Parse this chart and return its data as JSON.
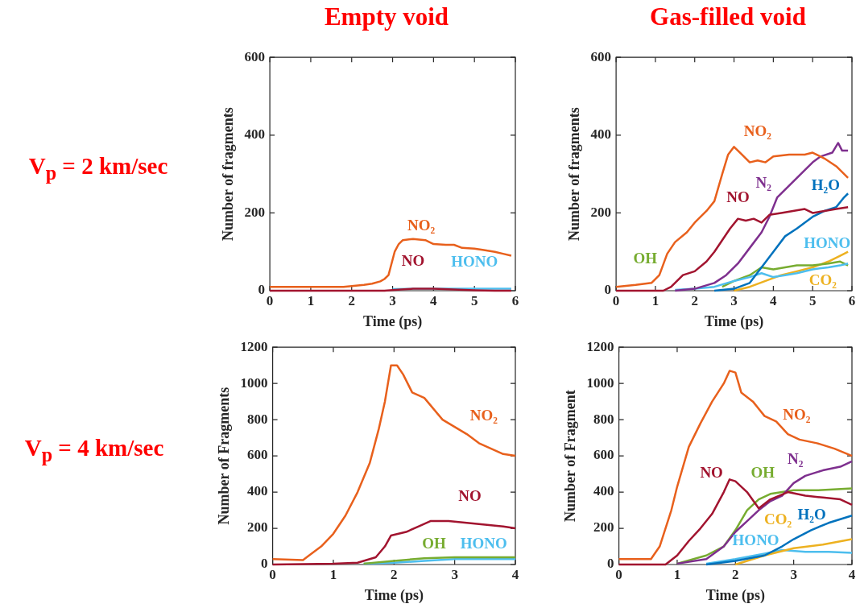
{
  "chart_data": [
    {
      "type": "line",
      "title": "Empty void",
      "annotations": [
        "V$_{p}$ = 2 km/sec"
      ],
      "xlabel": "Time (ps)",
      "ylabel": "Number of fragments",
      "xlim": [
        0,
        6
      ],
      "xticks": [
        0,
        1,
        2,
        3,
        4,
        5,
        6
      ],
      "ylim": [
        0,
        600
      ],
      "yticks": [
        0,
        200,
        400,
        600
      ],
      "series": [
        {
          "name": "NO₂",
          "color": "#e8601c",
          "x": [
            0,
            0.5,
            1,
            1.5,
            1.8,
            2.1,
            2.3,
            2.5,
            2.7,
            2.8,
            2.9,
            2.95,
            3.05,
            3.15,
            3.25,
            3.4,
            3.5,
            3.8,
            4.0,
            4.3,
            4.5,
            4.7,
            5.0,
            5.2,
            5.5,
            5.7,
            5.9
          ],
          "values": [
            10,
            10,
            10,
            10,
            10,
            13,
            15,
            18,
            24,
            30,
            40,
            60,
            100,
            120,
            130,
            132,
            133,
            130,
            120,
            118,
            118,
            110,
            108,
            105,
            100,
            95,
            90
          ]
        },
        {
          "name": "NO",
          "color": "#a2142f",
          "x": [
            0,
            1,
            2,
            2.8,
            3.2,
            3.5,
            4.0,
            4.5,
            5.0,
            5.5,
            5.9
          ],
          "values": [
            0,
            0,
            0,
            0,
            3,
            5,
            5,
            3,
            1,
            0,
            0
          ]
        },
        {
          "name": "HONO",
          "color": "#4dbeee",
          "x": [
            3.0,
            3.5,
            4.0,
            4.5,
            5.0,
            5.5,
            5.9
          ],
          "values": [
            4,
            5,
            5,
            5,
            5,
            5,
            5
          ]
        }
      ]
    },
    {
      "type": "line",
      "title": "Gas-filled void",
      "xlabel": "Time (ps)",
      "ylabel": "Number of fragments",
      "xlim": [
        0,
        6
      ],
      "xticks": [
        0,
        1,
        2,
        3,
        4,
        5,
        6
      ],
      "ylim": [
        0,
        600
      ],
      "yticks": [
        0,
        200,
        400,
        600
      ],
      "series": [
        {
          "name": "NO₂",
          "color": "#e8601c",
          "x": [
            0,
            0.5,
            0.9,
            1.1,
            1.3,
            1.5,
            1.8,
            2.0,
            2.3,
            2.5,
            2.7,
            2.85,
            3.0,
            3.2,
            3.4,
            3.6,
            3.8,
            4.0,
            4.4,
            4.8,
            5.0,
            5.3,
            5.6,
            5.9
          ],
          "values": [
            10,
            15,
            20,
            40,
            95,
            125,
            150,
            175,
            205,
            230,
            300,
            350,
            370,
            350,
            330,
            335,
            330,
            345,
            350,
            350,
            355,
            340,
            320,
            290
          ]
        },
        {
          "name": "NO",
          "color": "#a2142f",
          "x": [
            0,
            1.2,
            1.4,
            1.7,
            2.0,
            2.3,
            2.5,
            2.7,
            2.9,
            3.1,
            3.3,
            3.5,
            3.7,
            3.9,
            4.2,
            4.5,
            4.8,
            5.0,
            5.3,
            5.6,
            5.9
          ],
          "values": [
            0,
            0,
            10,
            40,
            50,
            75,
            100,
            130,
            160,
            185,
            180,
            185,
            175,
            195,
            200,
            205,
            210,
            200,
            205,
            210,
            215
          ]
        },
        {
          "name": "N₂",
          "color": "#7e2f8e",
          "x": [
            1.5,
            2.0,
            2.5,
            2.8,
            3.1,
            3.4,
            3.7,
            3.9,
            4.1,
            4.4,
            4.7,
            5.0,
            5.2,
            5.5,
            5.65,
            5.75,
            5.9
          ],
          "values": [
            0,
            5,
            20,
            40,
            70,
            110,
            150,
            190,
            240,
            270,
            300,
            330,
            345,
            355,
            380,
            360,
            360
          ]
        },
        {
          "name": "H₂O",
          "color": "#0072bd",
          "x": [
            2.5,
            3.0,
            3.4,
            3.7,
            4.0,
            4.3,
            4.6,
            5.0,
            5.3,
            5.6,
            5.8,
            5.9
          ],
          "values": [
            0,
            5,
            20,
            60,
            100,
            140,
            160,
            190,
            205,
            215,
            240,
            250
          ]
        },
        {
          "name": "HONO",
          "color": "#4dbeee",
          "x": [
            1.5,
            2.0,
            2.5,
            3.0,
            3.4,
            3.7,
            4.0,
            4.3,
            4.6,
            5.0,
            5.4,
            5.7,
            5.9
          ],
          "values": [
            2,
            5,
            10,
            25,
            35,
            45,
            35,
            40,
            45,
            55,
            60,
            65,
            70
          ]
        },
        {
          "name": "OH",
          "color": "#77ac30",
          "x": [
            2.7,
            3.0,
            3.4,
            3.7,
            4.0,
            4.3,
            4.6,
            5.0,
            5.4,
            5.7,
            5.9
          ],
          "values": [
            10,
            25,
            40,
            60,
            55,
            60,
            65,
            65,
            70,
            75,
            65
          ]
        },
        {
          "name": "CO₂",
          "color": "#edb120",
          "x": [
            3.0,
            3.4,
            3.8,
            4.2,
            4.6,
            5.0,
            5.4,
            5.7,
            5.9
          ],
          "values": [
            0,
            10,
            25,
            40,
            50,
            60,
            75,
            90,
            100
          ]
        }
      ]
    },
    {
      "type": "line",
      "annotations": [
        "V$_{p}$ = 4 km/sec"
      ],
      "xlabel": "Time (ps)",
      "ylabel": "Number of Fragments",
      "xlim": [
        0,
        4
      ],
      "xticks": [
        0,
        1,
        2,
        3,
        4
      ],
      "ylim": [
        0,
        1200
      ],
      "yticks": [
        0,
        200,
        400,
        600,
        800,
        1000,
        1200
      ],
      "series": [
        {
          "name": "NO₂",
          "color": "#e8601c",
          "x": [
            0,
            0.5,
            0.6,
            0.8,
            1.0,
            1.2,
            1.4,
            1.6,
            1.75,
            1.85,
            1.95,
            2.05,
            2.15,
            2.3,
            2.5,
            2.6,
            2.8,
            3.0,
            3.2,
            3.4,
            3.6,
            3.8,
            4.0
          ],
          "values": [
            30,
            25,
            50,
            100,
            170,
            270,
            400,
            560,
            750,
            900,
            1100,
            1100,
            1050,
            950,
            920,
            880,
            800,
            760,
            720,
            670,
            640,
            610,
            600
          ]
        },
        {
          "name": "NO",
          "color": "#a2142f",
          "x": [
            0,
            1.0,
            1.4,
            1.7,
            1.85,
            1.95,
            2.2,
            2.4,
            2.6,
            2.9,
            3.2,
            3.5,
            3.8,
            4.0
          ],
          "values": [
            0,
            5,
            10,
            40,
            100,
            160,
            180,
            210,
            240,
            240,
            230,
            220,
            210,
            200
          ]
        },
        {
          "name": "OH",
          "color": "#77ac30",
          "x": [
            1.5,
            2.0,
            2.5,
            3.0,
            4.0
          ],
          "values": [
            5,
            20,
            35,
            40,
            40
          ]
        },
        {
          "name": "HONO",
          "color": "#4dbeee",
          "x": [
            1.5,
            2.0,
            2.5,
            3.0,
            4.0
          ],
          "values": [
            5,
            10,
            20,
            30,
            30
          ]
        }
      ]
    },
    {
      "type": "line",
      "xlabel": "Time (ps)",
      "ylabel": "Number of Fragment",
      "xlim": [
        0,
        4
      ],
      "xticks": [
        0,
        1,
        2,
        3,
        4
      ],
      "ylim": [
        0,
        1200
      ],
      "yticks": [
        0,
        200,
        400,
        600,
        800,
        1000,
        1200
      ],
      "series": [
        {
          "name": "NO₂",
          "color": "#e8601c",
          "x": [
            0,
            0.55,
            0.7,
            0.9,
            1.0,
            1.2,
            1.4,
            1.6,
            1.8,
            1.9,
            2.0,
            2.1,
            2.3,
            2.5,
            2.7,
            2.9,
            3.1,
            3.4,
            3.7,
            4.0
          ],
          "values": [
            30,
            30,
            100,
            300,
            430,
            650,
            780,
            900,
            1000,
            1070,
            1060,
            950,
            900,
            820,
            790,
            720,
            690,
            670,
            640,
            600
          ]
        },
        {
          "name": "NO",
          "color": "#a2142f",
          "x": [
            0,
            0.8,
            1.0,
            1.2,
            1.4,
            1.6,
            1.8,
            1.9,
            2.0,
            2.2,
            2.4,
            2.6,
            2.9,
            3.2,
            3.5,
            3.8,
            4.0
          ],
          "values": [
            0,
            0,
            50,
            130,
            200,
            280,
            400,
            470,
            460,
            400,
            310,
            360,
            400,
            380,
            370,
            360,
            330
          ]
        },
        {
          "name": "N₂",
          "color": "#7e2f8e",
          "x": [
            1.0,
            1.5,
            1.8,
            2.0,
            2.2,
            2.4,
            2.6,
            2.8,
            3.0,
            3.2,
            3.5,
            3.8,
            4.0
          ],
          "values": [
            5,
            30,
            100,
            180,
            240,
            300,
            350,
            380,
            450,
            490,
            520,
            540,
            570
          ]
        },
        {
          "name": "OH",
          "color": "#77ac30",
          "x": [
            1.0,
            1.5,
            1.8,
            2.0,
            2.2,
            2.4,
            2.6,
            2.8,
            3.0,
            3.4,
            4.0
          ],
          "values": [
            5,
            50,
            100,
            190,
            300,
            360,
            390,
            400,
            410,
            410,
            420
          ]
        },
        {
          "name": "H₂O",
          "color": "#0072bd",
          "x": [
            1.5,
            2.0,
            2.5,
            2.8,
            3.0,
            3.3,
            3.6,
            4.0
          ],
          "values": [
            0,
            20,
            50,
            100,
            140,
            190,
            230,
            270
          ]
        },
        {
          "name": "CO₂",
          "color": "#edb120",
          "x": [
            2.0,
            2.5,
            3.0,
            3.5,
            4.0
          ],
          "values": [
            0,
            50,
            90,
            110,
            140
          ]
        },
        {
          "name": "HONO",
          "color": "#4dbeee",
          "x": [
            1.5,
            2.0,
            2.5,
            2.8,
            3.2,
            3.6,
            4.0
          ],
          "values": [
            5,
            30,
            60,
            80,
            70,
            70,
            65
          ]
        }
      ]
    }
  ]
}
